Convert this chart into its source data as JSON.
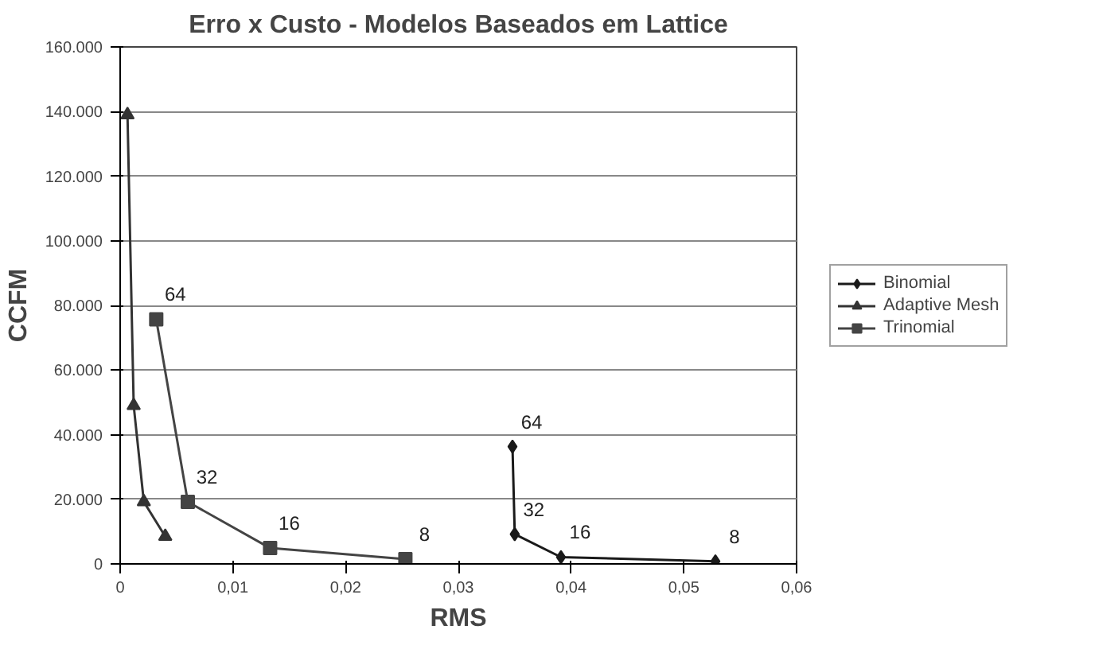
{
  "chart_data": {
    "type": "line",
    "title": "Erro x Custo - Modelos Baseados em Lattice",
    "xlabel": "RMS",
    "ylabel": "CCFM",
    "series": [
      {
        "name": "Binomial",
        "color": "#1a1a1a",
        "marker": "diamond",
        "x": [
          0.0348,
          0.035,
          0.0391,
          0.0528
        ],
        "values": [
          36300,
          9200,
          2100,
          800
        ]
      },
      {
        "name": "Adaptive Mesh",
        "color": "#333333",
        "marker": "triangle",
        "x": [
          0.00065,
          0.0012,
          0.0021,
          0.004
        ],
        "values": [
          139000,
          49000,
          19200,
          8500
        ]
      },
      {
        "name": "Trinomial",
        "color": "#444444",
        "marker": "square",
        "x": [
          0.0032,
          0.006,
          0.0133,
          0.0253
        ],
        "values": [
          75700,
          19200,
          4900,
          1500
        ]
      }
    ],
    "annotations": [
      {
        "text": "64",
        "x": 0.0032,
        "y": 75700
      },
      {
        "text": "32",
        "x": 0.006,
        "y": 19200
      },
      {
        "text": "16",
        "x": 0.0133,
        "y": 4900
      },
      {
        "text": "8",
        "x": 0.0253,
        "y": 1500
      },
      {
        "text": "64",
        "x": 0.0348,
        "y": 36300
      },
      {
        "text": "32",
        "x": 0.035,
        "y": 9200
      },
      {
        "text": "16",
        "x": 0.0391,
        "y": 2100
      },
      {
        "text": "8",
        "x": 0.0528,
        "y": 800
      }
    ],
    "xlim": [
      0,
      0.06
    ],
    "xticks": [
      0,
      {
        "value": 0.01,
        "label": "0,01"
      },
      {
        "value": 0.02,
        "label": "0,02"
      },
      {
        "value": 0.03,
        "label": "0,03"
      },
      {
        "value": 0.04,
        "label": "0,04"
      },
      {
        "value": 0.05,
        "label": "0,05"
      },
      {
        "value": 0.06,
        "label": "0,06"
      }
    ],
    "ylim": [
      0,
      160000
    ],
    "yticks": [
      0,
      {
        "value": 20000,
        "label": "20.000"
      },
      {
        "value": 40000,
        "label": "40.000"
      },
      {
        "value": 60000,
        "label": "60.000"
      },
      {
        "value": 80000,
        "label": "80.000"
      },
      {
        "value": 100000,
        "label": "100.000"
      },
      {
        "value": 120000,
        "label": "120.000"
      },
      {
        "value": 140000,
        "label": "140.000"
      },
      {
        "value": 160000,
        "label": "160.000"
      }
    ],
    "grid": "y",
    "legend": "right",
    "line_style": "solid"
  }
}
